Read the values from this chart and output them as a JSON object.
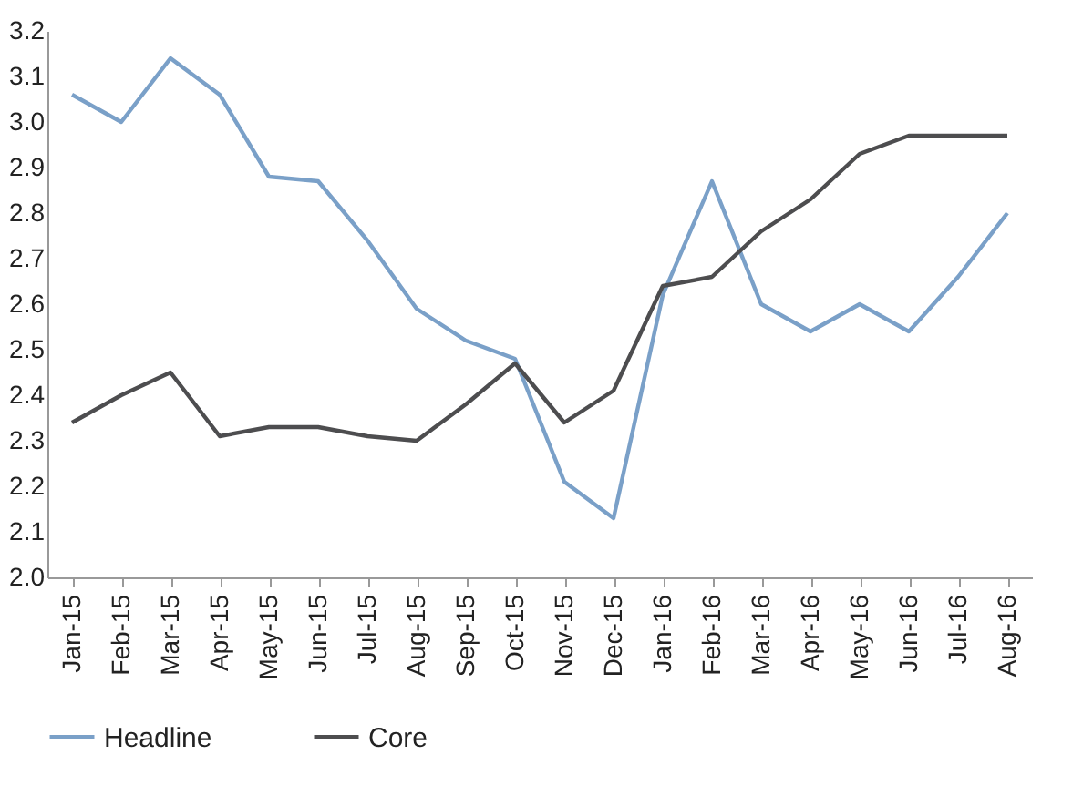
{
  "chart_data": {
    "type": "line",
    "categories": [
      "Jan-15",
      "Feb-15",
      "Mar-15",
      "Apr-15",
      "May-15",
      "Jun-15",
      "Jul-15",
      "Aug-15",
      "Sep-15",
      "Oct-15",
      "Nov-15",
      "Dec-15",
      "Jan-16",
      "Feb-16",
      "Mar-16",
      "Apr-16",
      "May-16",
      "Jun-16",
      "Jul-16",
      "Aug-16"
    ],
    "series": [
      {
        "name": "Headline",
        "color": "#7aa0c8",
        "values": [
          3.06,
          3.0,
          3.14,
          3.06,
          2.88,
          2.87,
          2.74,
          2.59,
          2.52,
          2.48,
          2.21,
          2.13,
          2.62,
          2.87,
          2.6,
          2.54,
          2.6,
          2.54,
          2.66,
          2.8
        ]
      },
      {
        "name": "Core",
        "color": "#4d4d4f",
        "values": [
          2.34,
          2.4,
          2.45,
          2.31,
          2.33,
          2.33,
          2.31,
          2.3,
          2.38,
          2.47,
          2.34,
          2.41,
          2.64,
          2.66,
          2.76,
          2.83,
          2.93,
          2.97,
          2.97,
          2.97
        ]
      }
    ],
    "ylim": [
      2.0,
      3.2
    ],
    "yticks": [
      {
        "value": 2,
        "label": "2.0"
      },
      2.1,
      2.2,
      2.3,
      2.4,
      2.5,
      2.6,
      2.7,
      2.8,
      2.9,
      {
        "value": 3,
        "label": "3.0"
      },
      3.1,
      3.2
    ],
    "grid": false,
    "legend": "bottom",
    "marker": "none",
    "line_style": "solid"
  }
}
